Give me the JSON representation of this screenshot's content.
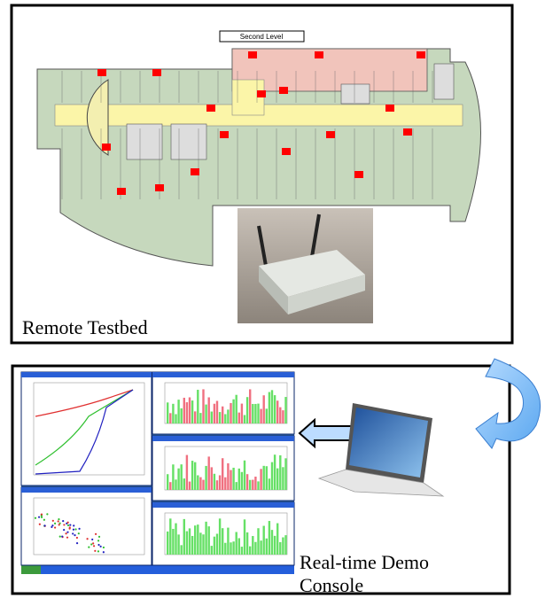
{
  "testbed": {
    "floor_label": "Second Level",
    "caption": "Remote Testbed"
  },
  "console": {
    "caption_lines": [
      "Real-time Demo",
      "Console"
    ]
  }
}
